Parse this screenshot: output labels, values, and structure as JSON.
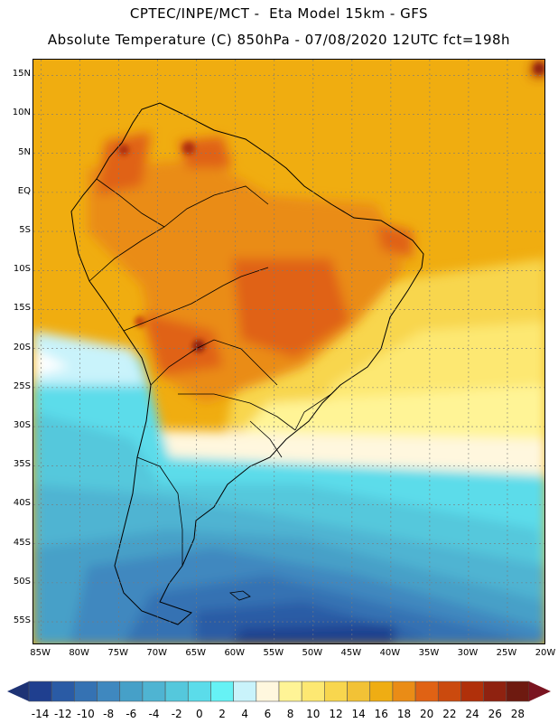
{
  "header": {
    "line1": "CPTEC/INPE/MCT -  Eta Model 15km - GFS",
    "line2": "Absolute Temperature (C) 850hPa - 07/08/2020 12UTC fct=198h"
  },
  "map": {
    "region": "South America",
    "lat_range": [
      -58,
      17
    ],
    "lon_range": [
      -86,
      -20
    ],
    "lat_labels": [
      "15N",
      "10N",
      "5N",
      "EQ",
      "5S",
      "10S",
      "15S",
      "20S",
      "25S",
      "30S",
      "35S",
      "40S",
      "45S",
      "50S",
      "55S"
    ],
    "lat_values": [
      15,
      10,
      5,
      0,
      -5,
      -10,
      -15,
      -20,
      -25,
      -30,
      -35,
      -40,
      -45,
      -50,
      -55
    ],
    "lon_labels": [
      "85W",
      "80W",
      "75W",
      "70W",
      "65W",
      "60W",
      "55W",
      "50W",
      "45W",
      "40W",
      "35W",
      "30W",
      "25W",
      "20W"
    ],
    "lon_values": [
      -85,
      -80,
      -75,
      -70,
      -65,
      -60,
      -55,
      -50,
      -45,
      -40,
      -35,
      -30,
      -25,
      -20
    ]
  },
  "colorbar": {
    "labels": [
      "-14",
      "-12",
      "-10",
      "-8",
      "-6",
      "-4",
      "-2",
      "0",
      "2",
      "4",
      "6",
      "8",
      "10",
      "12",
      "14",
      "16",
      "18",
      "20",
      "22",
      "24",
      "26",
      "28"
    ],
    "colors": [
      "#1f3f8f",
      "#2a5ba5",
      "#3572b3",
      "#3f88bf",
      "#46a0c8",
      "#4fb4d2",
      "#55c8dc",
      "#5bdcea",
      "#66f2f5",
      "#c9f3fb",
      "#fff7de",
      "#fff496",
      "#fde872",
      "#f8d64e",
      "#f2c236",
      "#efad13",
      "#ea8c16",
      "#e06214",
      "#cb4a0e",
      "#b0300a",
      "#8f2210",
      "#6e1a10"
    ],
    "under_color": "#1e3375",
    "over_color": "#7a1420"
  }
}
